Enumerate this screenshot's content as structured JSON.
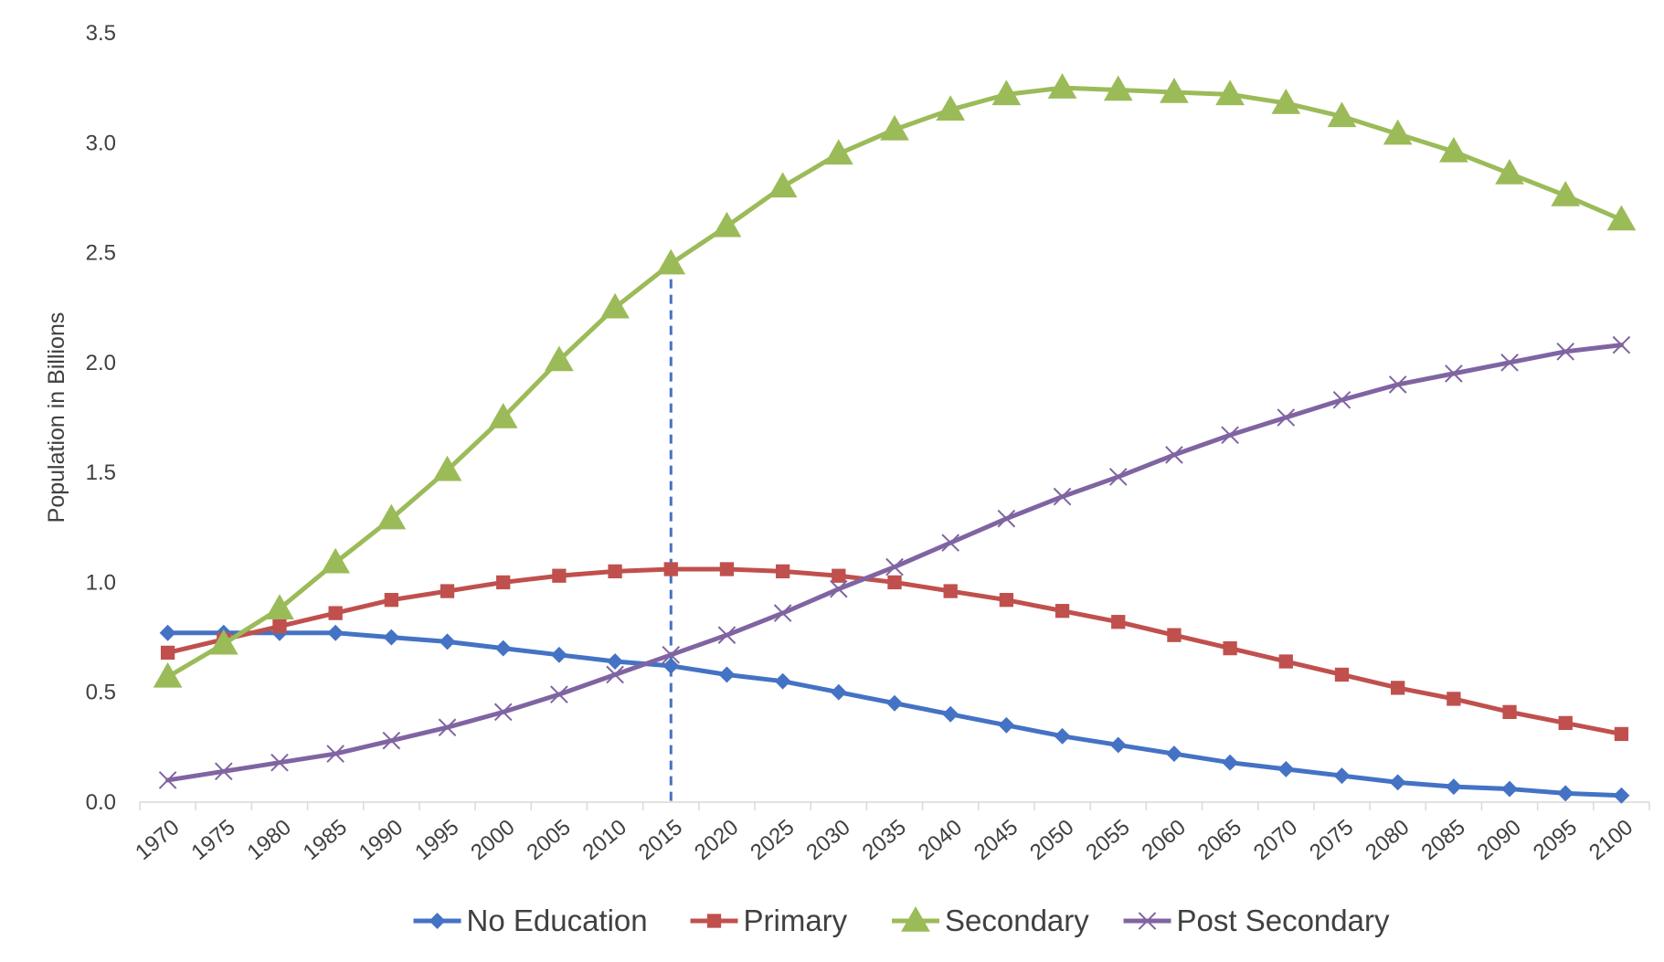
{
  "chart_data": {
    "type": "line",
    "title": "",
    "xlabel": "",
    "ylabel": "Population in Billions",
    "ylim": [
      0,
      3.5
    ],
    "yticks": [
      "0.0",
      "0.5",
      "1.0",
      "1.5",
      "2.0",
      "2.5",
      "3.0",
      "3.5"
    ],
    "ytick_values": [
      0,
      0.5,
      1.0,
      1.5,
      2.0,
      2.5,
      3.0,
      3.5
    ],
    "categories": [
      "1970",
      "1975",
      "1980",
      "1985",
      "1990",
      "1995",
      "2000",
      "2005",
      "2010",
      "2015",
      "2020",
      "2025",
      "2030",
      "2035",
      "2040",
      "2045",
      "2050",
      "2055",
      "2060",
      "2065",
      "2070",
      "2075",
      "2080",
      "2085",
      "2090",
      "2095",
      "2100"
    ],
    "grid": false,
    "legend_position": "bottom",
    "reference_line": {
      "category": "2015",
      "style": "dashed",
      "color": "#4472c4"
    },
    "series": [
      {
        "name": "No Education",
        "color": "#4472c4",
        "marker": "diamond",
        "values": [
          0.77,
          0.77,
          0.77,
          0.77,
          0.75,
          0.73,
          0.7,
          0.67,
          0.64,
          0.62,
          0.58,
          0.55,
          0.5,
          0.45,
          0.4,
          0.35,
          0.3,
          0.26,
          0.22,
          0.18,
          0.15,
          0.12,
          0.09,
          0.07,
          0.06,
          0.04,
          0.03
        ]
      },
      {
        "name": "Primary",
        "color": "#c0504d",
        "marker": "square",
        "values": [
          0.68,
          0.74,
          0.8,
          0.86,
          0.92,
          0.96,
          1.0,
          1.03,
          1.05,
          1.06,
          1.06,
          1.05,
          1.03,
          1.0,
          0.96,
          0.92,
          0.87,
          0.82,
          0.76,
          0.7,
          0.64,
          0.58,
          0.52,
          0.47,
          0.41,
          0.36,
          0.31
        ]
      },
      {
        "name": "Secondary",
        "color": "#9bbb59",
        "marker": "triangle",
        "values": [
          0.57,
          0.72,
          0.88,
          1.09,
          1.29,
          1.51,
          1.75,
          2.01,
          2.25,
          2.45,
          2.62,
          2.8,
          2.95,
          3.06,
          3.15,
          3.22,
          3.25,
          3.24,
          3.23,
          3.22,
          3.18,
          3.12,
          3.04,
          2.96,
          2.86,
          2.76,
          2.65
        ]
      },
      {
        "name": "Post Secondary",
        "color": "#8064a2",
        "marker": "x",
        "values": [
          0.1,
          0.14,
          0.18,
          0.22,
          0.28,
          0.34,
          0.41,
          0.49,
          0.58,
          0.67,
          0.76,
          0.86,
          0.97,
          1.07,
          1.18,
          1.29,
          1.39,
          1.48,
          1.58,
          1.67,
          1.75,
          1.83,
          1.9,
          1.95,
          2.0,
          2.05,
          2.08
        ]
      }
    ]
  }
}
